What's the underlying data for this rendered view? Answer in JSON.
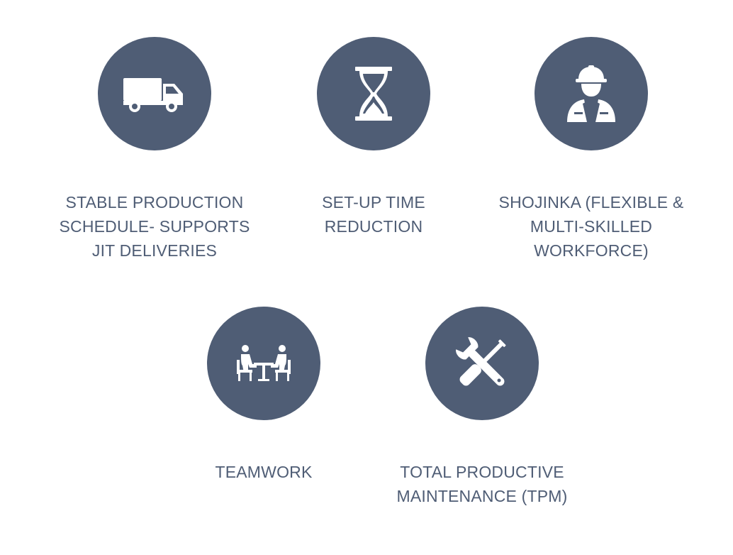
{
  "colors": {
    "circle": "#4f5d75",
    "icon": "#ffffff",
    "text": "#4f5d75"
  },
  "items": [
    {
      "icon": "truck-icon",
      "label": "STABLE PRODUCTION\nSCHEDULE- SUPPORTS\nJIT DELIVERIES"
    },
    {
      "icon": "hourglass-icon",
      "label": "SET-UP TIME\nREDUCTION"
    },
    {
      "icon": "worker-icon",
      "label": "SHOJINKA (FLEXIBLE &\nMULTI-SKILLED\nWORKFORCE)"
    },
    {
      "icon": "meeting-icon",
      "label": "TEAMWORK"
    },
    {
      "icon": "tools-icon",
      "label": "TOTAL PRODUCTIVE\nMAINTENANCE (TPM)"
    }
  ]
}
